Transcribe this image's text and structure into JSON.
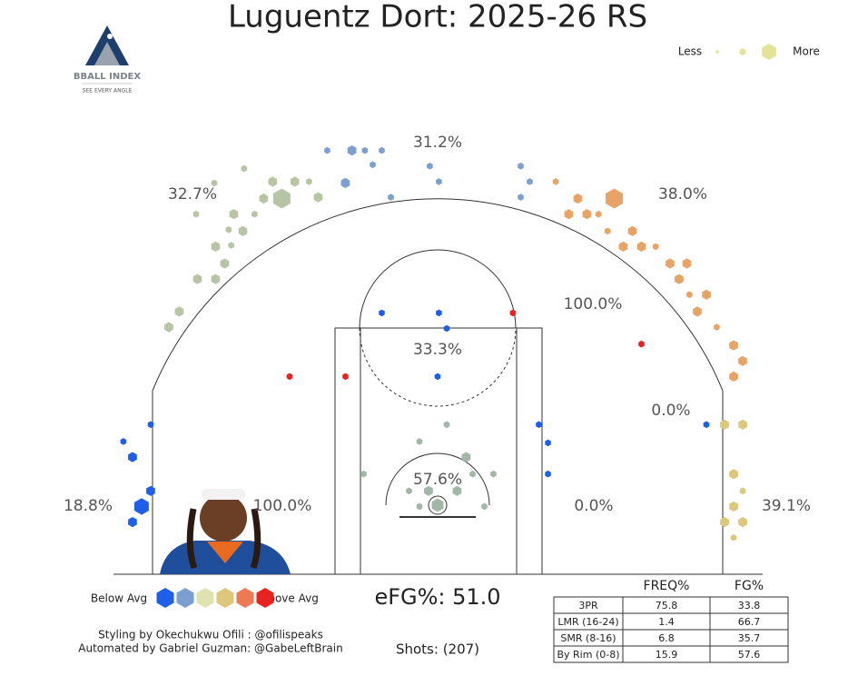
{
  "title": "Luguentz Dort: 2025-26 RS",
  "logo": {
    "name": "BBALL INDEX",
    "tagline": "SEE EVERY ANGLE"
  },
  "size_legend": {
    "less": "Less",
    "more": "More"
  },
  "color_legend": {
    "below": "Below Avg",
    "above": "Above Avg"
  },
  "zones": [
    "31.2%",
    "32.7%",
    "38.0%",
    "100.0%",
    "33.3%",
    "0.0%",
    "57.6%",
    "18.8%",
    "100.0%",
    "0.0%",
    "39.1%"
  ],
  "efg": "eFG%: 51.0",
  "shots_total": "Shots: (207)",
  "credits": [
    "Styling by Okechukwu Ofili : @ofilispeaks",
    "Automated by Gabriel Guzman: @GabeLeftBrain"
  ],
  "table": {
    "header": [
      "FREQ%",
      "FG%"
    ],
    "rows": [
      [
        "3PR",
        "75.8",
        "33.8"
      ],
      [
        "LMR (16-24)",
        "1.4",
        "66.7"
      ],
      [
        "SMR (8-16)",
        "6.8",
        "35.7"
      ],
      [
        "By Rim (0-8)",
        "15.9",
        "57.6"
      ]
    ]
  },
  "shots": [
    {
      "x": -14.9,
      "y": 25.9,
      "count": 1,
      "color": "#b7c5a5"
    },
    {
      "x": -12.0,
      "y": 23.6,
      "count": 5,
      "color": "#b7c5a5"
    },
    {
      "x": -13.4,
      "y": 23.6,
      "count": 2,
      "color": "#b7c5a5"
    },
    {
      "x": -12.7,
      "y": 24.9,
      "count": 2,
      "color": "#b7c5a5"
    },
    {
      "x": -11.0,
      "y": 24.9,
      "count": 2,
      "color": "#b7c5a5"
    },
    {
      "x": -9.2,
      "y": 23.7,
      "count": 2,
      "color": "#b7c5a5"
    },
    {
      "x": -9.9,
      "y": 24.9,
      "count": 1,
      "color": "#b7c5a5"
    },
    {
      "x": -15.7,
      "y": 22.4,
      "count": 2,
      "color": "#b7c5a5"
    },
    {
      "x": -14.1,
      "y": 22.4,
      "count": 1,
      "color": "#b7c5a5"
    },
    {
      "x": -15.0,
      "y": 21.1,
      "count": 2,
      "color": "#b7c5a5"
    },
    {
      "x": -16.1,
      "y": 21.2,
      "count": 1,
      "color": "#b7c5a5"
    },
    {
      "x": -17.1,
      "y": 19.9,
      "count": 2,
      "color": "#b7c5a5"
    },
    {
      "x": -15.9,
      "y": 20.0,
      "count": 1,
      "color": "#b7c5a5"
    },
    {
      "x": -16.4,
      "y": 18.6,
      "count": 2,
      "color": "#b7c5a5"
    },
    {
      "x": -17.1,
      "y": 17.4,
      "count": 2,
      "color": "#b7c5a5"
    },
    {
      "x": -18.5,
      "y": 17.4,
      "count": 2,
      "color": "#b7c5a5"
    },
    {
      "x": -19.9,
      "y": 14.9,
      "count": 2,
      "color": "#b7c5a5"
    },
    {
      "x": -20.7,
      "y": 13.7,
      "count": 2,
      "color": "#b7c5a5"
    },
    {
      "x": -18.6,
      "y": 22.4,
      "count": 1,
      "color": "#b7c5a5"
    },
    {
      "x": -17.2,
      "y": 24.8,
      "count": 1,
      "color": "#b7c5a5"
    },
    {
      "x": -8.5,
      "y": 27.3,
      "count": 1,
      "color": "#7b9fd0"
    },
    {
      "x": -7.1,
      "y": 24.8,
      "count": 2,
      "color": "#7b9fd0"
    },
    {
      "x": -6.6,
      "y": 27.3,
      "count": 2,
      "color": "#7b9fd0"
    },
    {
      "x": -5.6,
      "y": 27.3,
      "count": 1,
      "color": "#7b9fd0"
    },
    {
      "x": -4.3,
      "y": 27.3,
      "count": 1,
      "color": "#7b9fd0"
    },
    {
      "x": -5.0,
      "y": 26.2,
      "count": 1,
      "color": "#7b9fd0"
    },
    {
      "x": -3.6,
      "y": 23.7,
      "count": 1,
      "color": "#7b9fd0"
    },
    {
      "x": -0.6,
      "y": 26.1,
      "count": 1,
      "color": "#7b9fd0"
    },
    {
      "x": 0.1,
      "y": 24.9,
      "count": 1,
      "color": "#7b9fd0"
    },
    {
      "x": 6.4,
      "y": 26.1,
      "count": 1,
      "color": "#7b9fd0"
    },
    {
      "x": 6.4,
      "y": 23.7,
      "count": 1,
      "color": "#7b9fd0"
    },
    {
      "x": 7.1,
      "y": 24.9,
      "count": 1,
      "color": "#7b9fd0"
    },
    {
      "x": 13.6,
      "y": 23.6,
      "count": 5,
      "color": "#e8a466"
    },
    {
      "x": 10.8,
      "y": 23.6,
      "count": 2,
      "color": "#e8a466"
    },
    {
      "x": 9.1,
      "y": 24.9,
      "count": 1,
      "color": "#e8a466"
    },
    {
      "x": 10.1,
      "y": 22.4,
      "count": 2,
      "color": "#e8a466"
    },
    {
      "x": 11.5,
      "y": 22.4,
      "count": 2,
      "color": "#e8a466"
    },
    {
      "x": 12.4,
      "y": 22.4,
      "count": 1,
      "color": "#e8a466"
    },
    {
      "x": 13.1,
      "y": 21.1,
      "count": 1,
      "color": "#e8a466"
    },
    {
      "x": 15.0,
      "y": 21.1,
      "count": 2,
      "color": "#e8a466"
    },
    {
      "x": 14.3,
      "y": 19.9,
      "count": 2,
      "color": "#e8a466"
    },
    {
      "x": 15.7,
      "y": 19.9,
      "count": 2,
      "color": "#e8a466"
    },
    {
      "x": 16.8,
      "y": 19.9,
      "count": 1,
      "color": "#e8a466"
    },
    {
      "x": 17.9,
      "y": 18.6,
      "count": 2,
      "color": "#e8a466"
    },
    {
      "x": 19.2,
      "y": 18.6,
      "count": 2,
      "color": "#e8a466"
    },
    {
      "x": 18.6,
      "y": 17.4,
      "count": 2,
      "color": "#e8a466"
    },
    {
      "x": 19.4,
      "y": 16.2,
      "count": 1,
      "color": "#e8a466"
    },
    {
      "x": 20.7,
      "y": 16.2,
      "count": 2,
      "color": "#e8a466"
    },
    {
      "x": 20.0,
      "y": 14.9,
      "count": 2,
      "color": "#e8a466"
    },
    {
      "x": 21.5,
      "y": 13.7,
      "count": 1,
      "color": "#e8a466"
    },
    {
      "x": 22.8,
      "y": 12.3,
      "count": 2,
      "color": "#e8a466"
    },
    {
      "x": 23.5,
      "y": 11.1,
      "count": 2,
      "color": "#e8a466"
    },
    {
      "x": 22.8,
      "y": 9.9,
      "count": 2,
      "color": "#e8a466"
    },
    {
      "x": 22.1,
      "y": 6.2,
      "count": 2,
      "color": "#dcc77c"
    },
    {
      "x": 23.5,
      "y": 6.2,
      "count": 2,
      "color": "#dcc77c"
    },
    {
      "x": 22.8,
      "y": 2.4,
      "count": 2,
      "color": "#dcc77c"
    },
    {
      "x": 22.8,
      "y": -0.1,
      "count": 2,
      "color": "#dcc77c"
    },
    {
      "x": 23.5,
      "y": 1.1,
      "count": 1,
      "color": "#dcc77c"
    },
    {
      "x": 22.1,
      "y": -1.3,
      "count": 2,
      "color": "#dcc77c"
    },
    {
      "x": 23.5,
      "y": -1.3,
      "count": 2,
      "color": "#dcc77c"
    },
    {
      "x": 22.8,
      "y": -2.5,
      "count": 1,
      "color": "#dcc77c"
    },
    {
      "x": -23.5,
      "y": 3.7,
      "count": 2,
      "color": "#1f5ee6"
    },
    {
      "x": -22.8,
      "y": -0.1,
      "count": 4,
      "color": "#1f5ee6"
    },
    {
      "x": -23.5,
      "y": -1.3,
      "count": 2,
      "color": "#1f5ee6"
    },
    {
      "x": -22.1,
      "y": 1.1,
      "count": 2,
      "color": "#1f5ee6"
    },
    {
      "x": -24.2,
      "y": 4.9,
      "count": 1,
      "color": "#1f5ee6"
    },
    {
      "x": -22.1,
      "y": 6.2,
      "count": 1,
      "color": "#1f5ee6"
    },
    {
      "x": -11.4,
      "y": 9.9,
      "count": 1,
      "color": "#e8221e"
    },
    {
      "x": -7.1,
      "y": 9.9,
      "count": 1,
      "color": "#e8221e"
    },
    {
      "x": 5.8,
      "y": 14.8,
      "count": 1,
      "color": "#e8221e"
    },
    {
      "x": 15.7,
      "y": 12.4,
      "count": 1,
      "color": "#e8221e"
    },
    {
      "x": -4.3,
      "y": 14.8,
      "count": 1,
      "color": "#1f5ee6"
    },
    {
      "x": 0.1,
      "y": 14.8,
      "count": 1,
      "color": "#1f5ee6"
    },
    {
      "x": 0.7,
      "y": 13.6,
      "count": 1,
      "color": "#1f5ee6"
    },
    {
      "x": 0.0,
      "y": 9.9,
      "count": 1,
      "color": "#1f5ee6"
    },
    {
      "x": 7.8,
      "y": 6.2,
      "count": 1,
      "color": "#1f5ee6"
    },
    {
      "x": 8.5,
      "y": 4.8,
      "count": 1,
      "color": "#1f5ee6"
    },
    {
      "x": 8.5,
      "y": 2.4,
      "count": 1,
      "color": "#1f5ee6"
    },
    {
      "x": 20.7,
      "y": 6.2,
      "count": 1,
      "color": "#1f5ee6"
    },
    {
      "x": 0.0,
      "y": 0.0,
      "count": 3,
      "color": "#a3b7a6"
    },
    {
      "x": 2.2,
      "y": 3.7,
      "count": 2,
      "color": "#a3b7a6"
    },
    {
      "x": 0.7,
      "y": 6.2,
      "count": 1,
      "color": "#a3b7a6"
    },
    {
      "x": -1.4,
      "y": 4.9,
      "count": 1,
      "color": "#a3b7a6"
    },
    {
      "x": -2.2,
      "y": 1.1,
      "count": 1,
      "color": "#a3b7a6"
    },
    {
      "x": -0.7,
      "y": 1.1,
      "count": 2,
      "color": "#a3b7a6"
    },
    {
      "x": 1.5,
      "y": 1.1,
      "count": 2,
      "color": "#a3b7a6"
    },
    {
      "x": 2.7,
      "y": 2.4,
      "count": 1,
      "color": "#a3b7a6"
    },
    {
      "x": -5.7,
      "y": 2.4,
      "count": 1,
      "color": "#a3b7a6"
    },
    {
      "x": 4.3,
      "y": 2.4,
      "count": 1,
      "color": "#a3b7a6"
    },
    {
      "x": 3.6,
      "y": -0.1,
      "count": 1,
      "color": "#a3b7a6"
    },
    {
      "x": -1.4,
      "y": -0.1,
      "count": 1,
      "color": "#a3b7a6"
    }
  ]
}
